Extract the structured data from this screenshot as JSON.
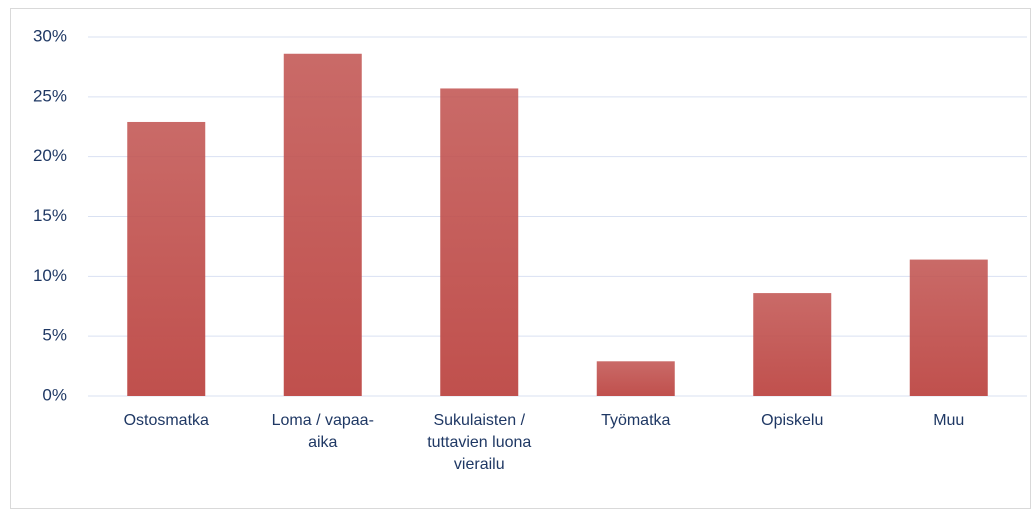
{
  "chart_data": {
    "type": "bar",
    "categories": [
      "Ostosmatka",
      "Loma / vapaa-aika",
      "Sukulaisten / tuttavien luona vierailu",
      "Työmatka",
      "Opiskelu",
      "Muu"
    ],
    "values": [
      22.9,
      28.6,
      25.7,
      2.9,
      8.6,
      11.4
    ],
    "color": "#c0504d",
    "ylim": [
      0,
      30
    ],
    "yticks": [
      {
        "value": 0,
        "label": "0%"
      },
      {
        "value": 5,
        "label": "5%"
      },
      {
        "value": 10,
        "label": "10%"
      },
      {
        "value": 15,
        "label": "15%"
      },
      {
        "value": 20,
        "label": "20%"
      },
      {
        "value": 25,
        "label": "25%"
      },
      {
        "value": 30,
        "label": "30%"
      }
    ],
    "grid": true
  }
}
